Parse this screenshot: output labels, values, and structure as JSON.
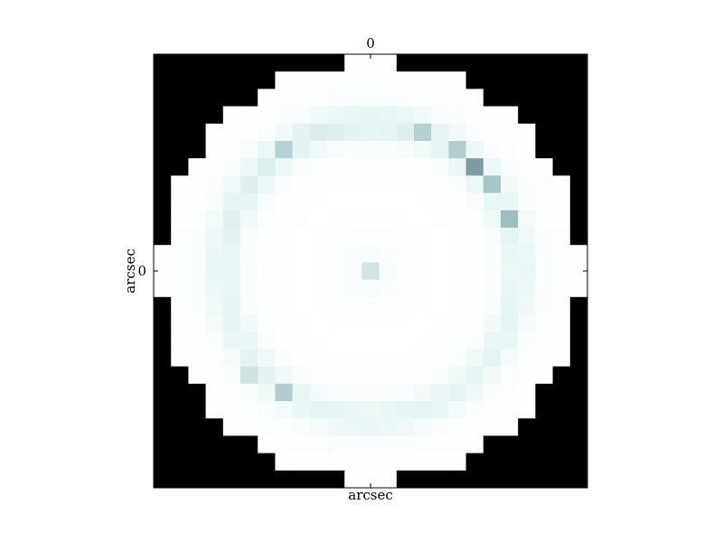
{
  "chart_data": {
    "type": "heatmap",
    "title": "",
    "xlabel": "arcsec",
    "ylabel": "arcsec",
    "grid": false,
    "legend": "none",
    "xlim": [
      -12.5,
      12.5
    ],
    "ylim": [
      -12.5,
      12.5
    ],
    "x_ticks": [
      {
        "value": 0,
        "label": "0"
      }
    ],
    "y_ticks": [
      {
        "value": 0,
        "label": "0"
      }
    ],
    "colormap": "bone_r",
    "masked_color": "#000000",
    "aperture_radius": 12.5,
    "center": [
      0,
      0
    ],
    "grid_size": 25,
    "intensity_description": "Circular intensity map with a faint central peak and an annular ring near radius 8.5 arcsec; brightest ring spot at upper-right.",
    "ring_radius": 8.5,
    "ring_width": 0.9,
    "ring_amplitude": 0.13,
    "center_peak": {
      "x": 0,
      "y": 0,
      "value": 0.18
    },
    "hotspots": [
      {
        "x": 6,
        "y": 6,
        "value": 0.38
      },
      {
        "x": 7,
        "y": 5,
        "value": 0.22
      },
      {
        "x": 8,
        "y": 3,
        "value": 0.26
      },
      {
        "x": 5,
        "y": 7,
        "value": 0.17
      },
      {
        "x": 3,
        "y": 8,
        "value": 0.15
      },
      {
        "x": -5,
        "y": -7,
        "value": 0.2
      },
      {
        "x": -7,
        "y": -6,
        "value": 0.15
      },
      {
        "x": -5,
        "y": 7,
        "value": 0.14
      }
    ]
  }
}
